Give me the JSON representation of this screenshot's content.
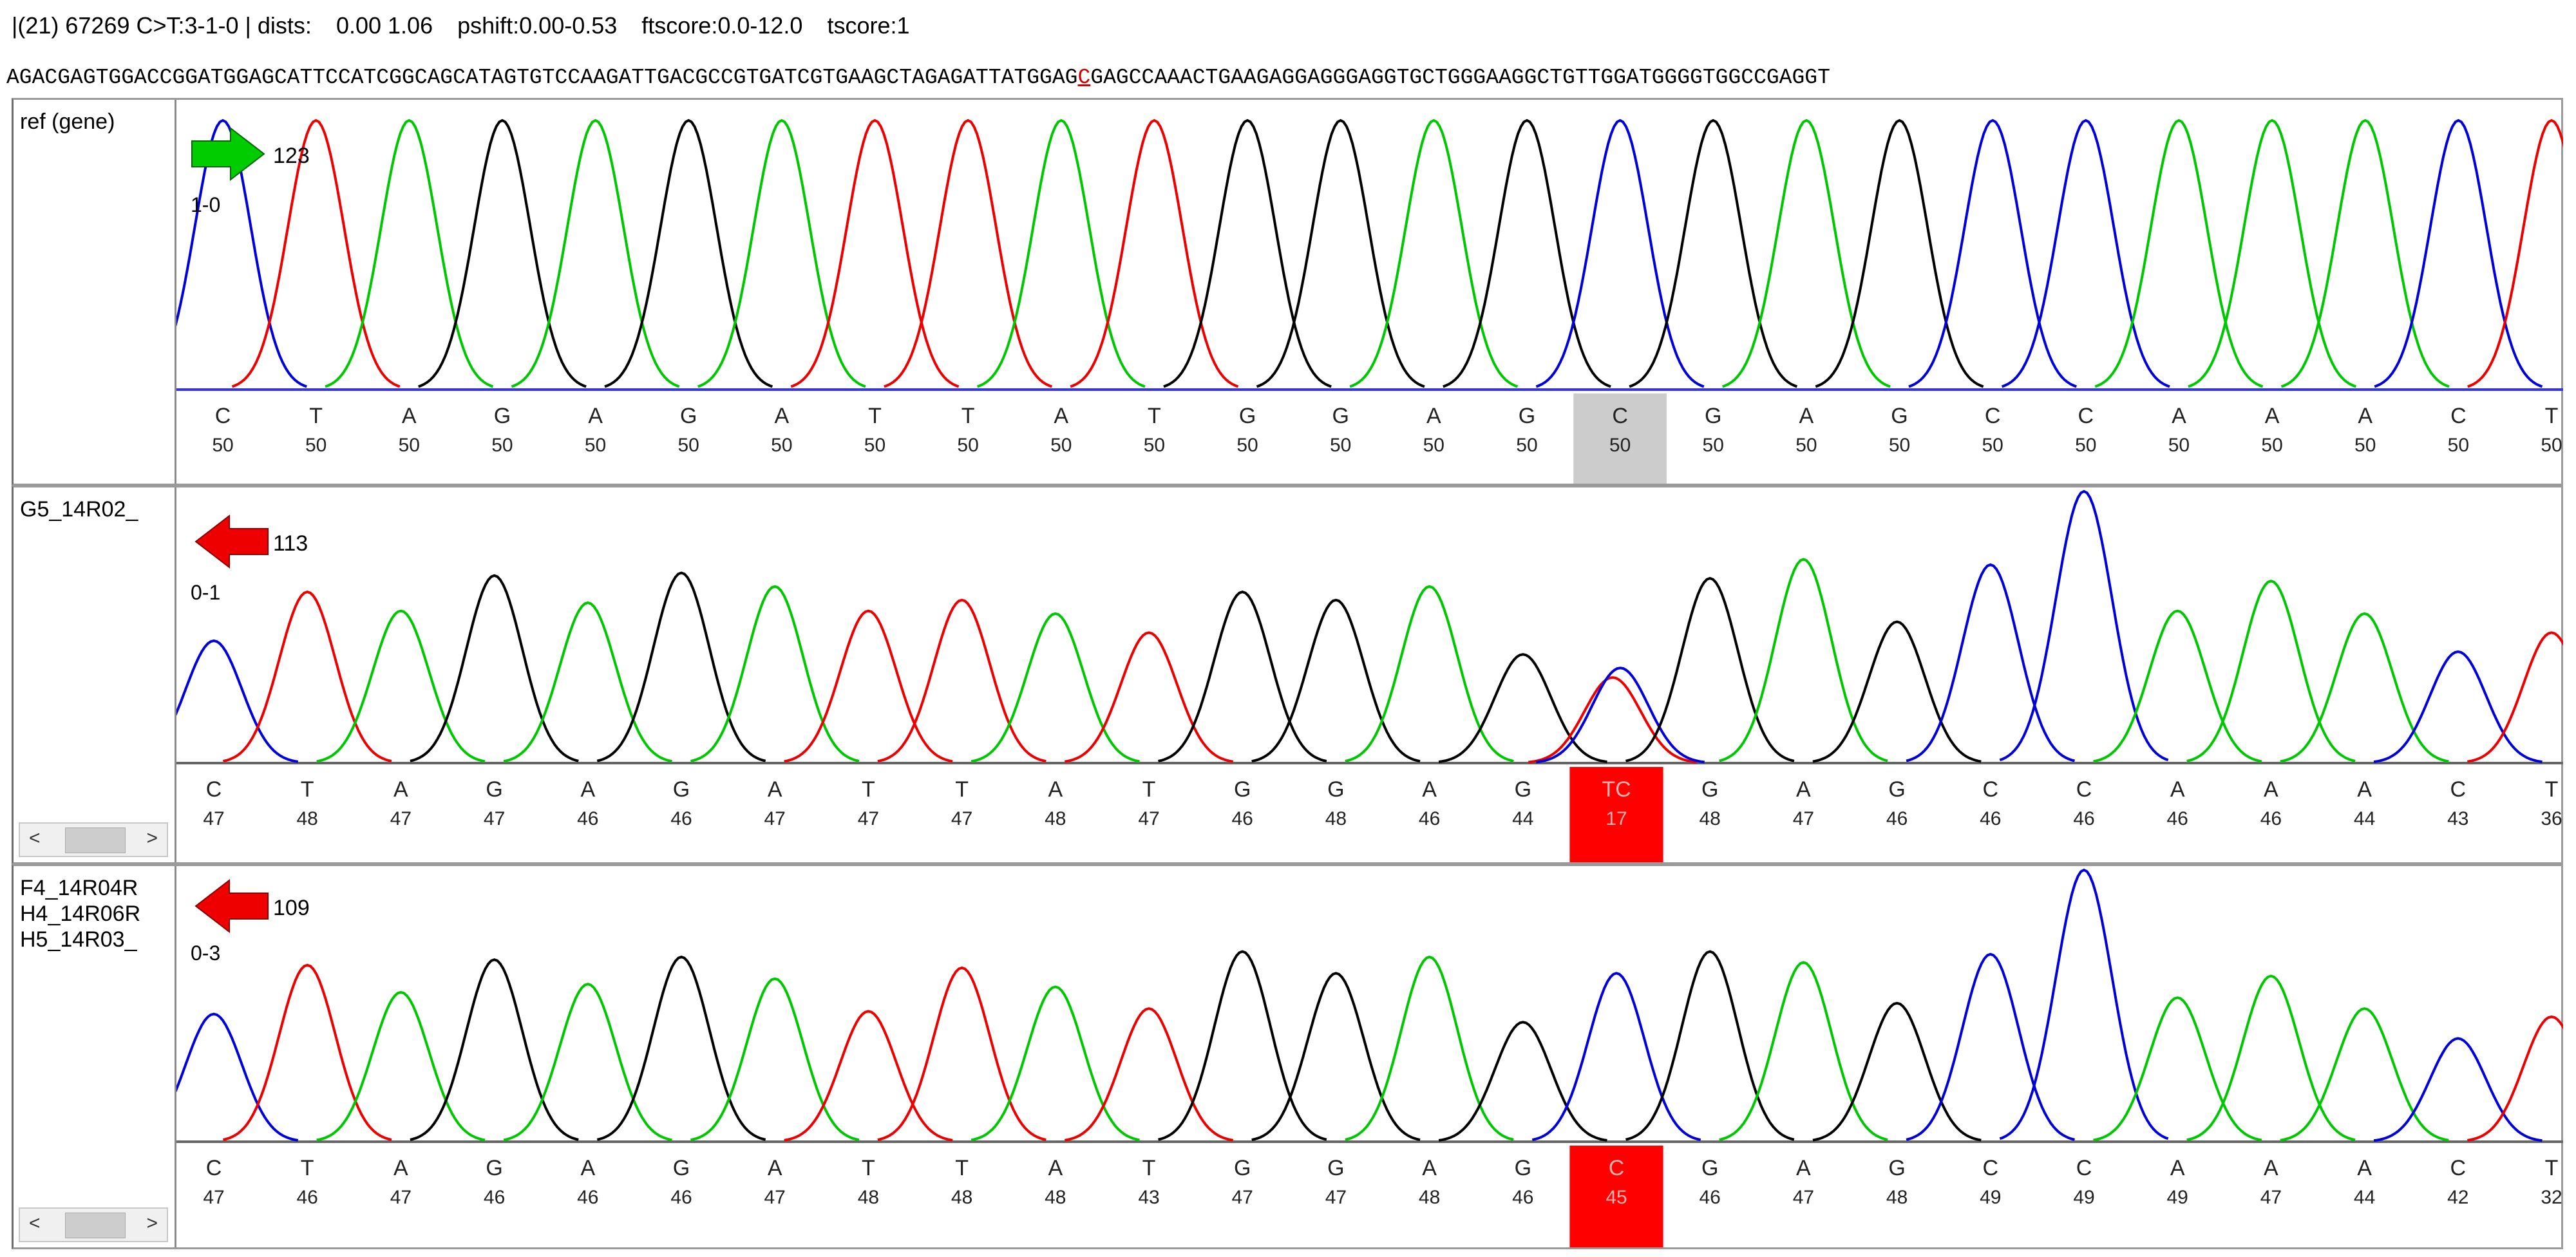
{
  "header": {
    "id": "|(21) 67269 C>T:3-1-0 | dists:",
    "dists": "0.00 1.06",
    "pshift": "pshift:0.00-0.53",
    "ftscore": "ftscore:0.0-12.0",
    "tscore": "tscore:1"
  },
  "reference_sequence": {
    "before": "AGACGAGTGGACCGGATGGAGCATTCCATCGGCAGCATAGTGTCCAAGATTGACGCCGTGATCGTGAAGCTAGAGATTATGGAG",
    "highlight": "C",
    "after": "GAGCCAAACTGAAGAGGAGGGAGGTGCTGGGAAGGCTGTTGGATGGGGTGGCCGAGGT"
  },
  "colors": {
    "A": "#00c800",
    "C": "#0000dd",
    "G": "#000000",
    "T": "#ee0000",
    "highlight_grey": "#cccccc",
    "highlight_red": "#ff0000"
  },
  "tracks": [
    {
      "name": "ref (gene)",
      "arrow_direction": "right",
      "arrow_color": "#00cc00",
      "arrow_icon": "green-right-arrow-icon",
      "count": "123",
      "ratio": "1-0",
      "highlight_index": 15,
      "highlight_style": "grey",
      "bases": [
        "C",
        "T",
        "A",
        "G",
        "A",
        "G",
        "A",
        "T",
        "T",
        "A",
        "T",
        "G",
        "G",
        "A",
        "G",
        "C",
        "G",
        "A",
        "G",
        "C",
        "C",
        "A",
        "A",
        "A",
        "C",
        "T"
      ],
      "quals": [
        "50",
        "50",
        "50",
        "50",
        "50",
        "50",
        "50",
        "50",
        "50",
        "50",
        "50",
        "50",
        "50",
        "50",
        "50",
        "50",
        "50",
        "50",
        "50",
        "50",
        "50",
        "50",
        "50",
        "50",
        "50",
        "50"
      ],
      "peak_heights": [
        0.95,
        0.95,
        0.95,
        0.95,
        0.95,
        0.95,
        0.95,
        0.95,
        0.95,
        0.95,
        0.95,
        0.95,
        0.95,
        0.95,
        0.95,
        0.95,
        0.95,
        0.95,
        0.95,
        0.95,
        0.95,
        0.95,
        0.95,
        0.95,
        0.95,
        0.95
      ],
      "valleys": [
        0.85,
        0.85,
        0.85,
        0.85,
        0.85,
        0.85,
        0.85,
        0.85,
        0.85,
        0.85,
        0.85,
        0.85,
        0.85,
        0.85,
        0.85,
        0.85,
        0.85,
        0.85,
        0.85,
        0.85,
        0.85,
        0.85,
        0.85,
        0.85,
        0.85,
        0.85
      ],
      "scrollbar": false
    },
    {
      "name": "G5_14R02_",
      "arrow_direction": "left",
      "arrow_color": "#ee0000",
      "arrow_icon": "red-left-arrow-icon",
      "count": "113",
      "ratio": "0-1",
      "highlight_index": 15,
      "highlight_style": "red",
      "bases": [
        "C",
        "T",
        "A",
        "G",
        "A",
        "G",
        "A",
        "T",
        "T",
        "A",
        "T",
        "G",
        "G",
        "A",
        "G",
        "TC",
        "G",
        "A",
        "G",
        "C",
        "C",
        "A",
        "A",
        "A",
        "C",
        "T"
      ],
      "quals": [
        "47",
        "48",
        "47",
        "47",
        "46",
        "46",
        "47",
        "47",
        "47",
        "48",
        "47",
        "46",
        "48",
        "46",
        "44",
        "17",
        "48",
        "47",
        "46",
        "46",
        "46",
        "46",
        "46",
        "44",
        "43",
        "36"
      ],
      "peak_heights": [
        0.45,
        0.63,
        0.56,
        0.69,
        0.59,
        0.7,
        0.65,
        0.56,
        0.6,
        0.55,
        0.48,
        0.63,
        0.6,
        0.65,
        0.4,
        0.35,
        0.68,
        0.75,
        0.52,
        0.73,
        1.0,
        0.56,
        0.67,
        0.55,
        0.41,
        0.48
      ],
      "scrollbar": true
    },
    {
      "name": "F4_14R04R\nH4_14R06R\nH5_14R03_",
      "arrow_direction": "left",
      "arrow_color": "#ee0000",
      "arrow_icon": "red-left-arrow-icon",
      "count": "109",
      "ratio": "0-3",
      "highlight_index": 15,
      "highlight_style": "red",
      "bases": [
        "C",
        "T",
        "A",
        "G",
        "A",
        "G",
        "A",
        "T",
        "T",
        "A",
        "T",
        "G",
        "G",
        "A",
        "G",
        "C",
        "G",
        "A",
        "G",
        "C",
        "C",
        "A",
        "A",
        "A",
        "C",
        "T"
      ],
      "quals": [
        "47",
        "46",
        "47",
        "46",
        "46",
        "46",
        "47",
        "48",
        "48",
        "48",
        "43",
        "47",
        "47",
        "48",
        "46",
        "45",
        "46",
        "47",
        "48",
        "49",
        "49",
        "49",
        "47",
        "44",
        "42",
        "32"
      ],
      "peak_heights": [
        0.47,
        0.65,
        0.55,
        0.67,
        0.58,
        0.68,
        0.6,
        0.48,
        0.64,
        0.57,
        0.49,
        0.7,
        0.62,
        0.68,
        0.44,
        0.62,
        0.7,
        0.66,
        0.51,
        0.69,
        1.0,
        0.53,
        0.61,
        0.49,
        0.38,
        0.46
      ],
      "scrollbar": true
    }
  ]
}
